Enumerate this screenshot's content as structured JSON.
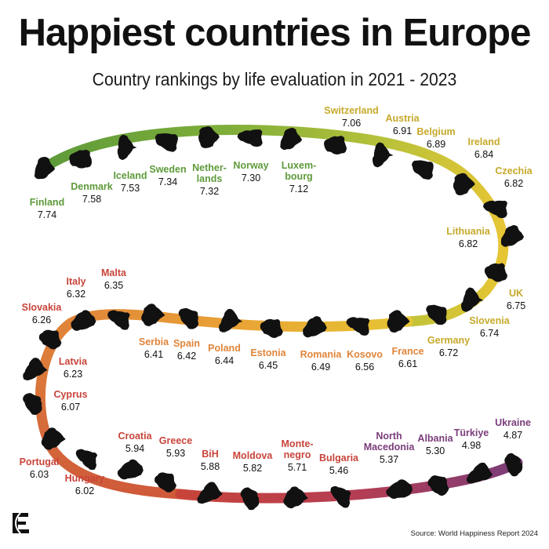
{
  "header": {
    "title": "Happiest countries in Europe",
    "subtitle": "Country rankings by life evaluation in 2021 - 2023"
  },
  "footer": {
    "source": "Source: World Happiness Report 2024",
    "logo_letter": "E"
  },
  "colors": {
    "green": "#5e9a3a",
    "yellow": "#e6c534",
    "orange": "#e0853a",
    "red": "#c8443a",
    "purple": "#7a3d7a",
    "silhouette": "#111111"
  },
  "chart_data": {
    "type": "table",
    "title": "Happiest countries in Europe",
    "subtitle": "Country rankings by life evaluation in 2021 - 2023",
    "items": [
      {
        "rank": 1,
        "name": "Finland",
        "score": "7.74"
      },
      {
        "rank": 2,
        "name": "Denmark",
        "score": "7.58"
      },
      {
        "rank": 3,
        "name": "Iceland",
        "score": "7.53"
      },
      {
        "rank": 4,
        "name": "Sweden",
        "score": "7.34"
      },
      {
        "rank": 5,
        "name": "Nether-\nlands",
        "score": "7.32"
      },
      {
        "rank": 6,
        "name": "Norway",
        "score": "7.30"
      },
      {
        "rank": 7,
        "name": "Luxem-\nbourg",
        "score": "7.12"
      },
      {
        "rank": 8,
        "name": "Switzerland",
        "score": "7.06"
      },
      {
        "rank": 9,
        "name": "Austria",
        "score": "6.91"
      },
      {
        "rank": 10,
        "name": "Belgium",
        "score": "6.89"
      },
      {
        "rank": 11,
        "name": "Ireland",
        "score": "6.84"
      },
      {
        "rank": 12,
        "name": "Czechia",
        "score": "6.82"
      },
      {
        "rank": 13,
        "name": "Lithuania",
        "score": "6.82"
      },
      {
        "rank": 14,
        "name": "UK",
        "score": "6.75"
      },
      {
        "rank": 15,
        "name": "Slovenia",
        "score": "6.74"
      },
      {
        "rank": 16,
        "name": "Germany",
        "score": "6.72"
      },
      {
        "rank": 17,
        "name": "France",
        "score": "6.61"
      },
      {
        "rank": 18,
        "name": "Kosovo",
        "score": "6.56"
      },
      {
        "rank": 19,
        "name": "Romania",
        "score": "6.49"
      },
      {
        "rank": 20,
        "name": "Estonia",
        "score": "6.45"
      },
      {
        "rank": 21,
        "name": "Poland",
        "score": "6.44"
      },
      {
        "rank": 22,
        "name": "Spain",
        "score": "6.42"
      },
      {
        "rank": 23,
        "name": "Serbia",
        "score": "6.41"
      },
      {
        "rank": 24,
        "name": "Malta",
        "score": "6.35"
      },
      {
        "rank": 25,
        "name": "Italy",
        "score": "6.32"
      },
      {
        "rank": 26,
        "name": "Slovakia",
        "score": "6.26"
      },
      {
        "rank": 27,
        "name": "Latvia",
        "score": "6.23"
      },
      {
        "rank": 28,
        "name": "Cyprus",
        "score": "6.07"
      },
      {
        "rank": 29,
        "name": "Portugal",
        "score": "6.03"
      },
      {
        "rank": 30,
        "name": "Hungary",
        "score": "6.02"
      },
      {
        "rank": 31,
        "name": "Croatia",
        "score": "5.94"
      },
      {
        "rank": 32,
        "name": "Greece",
        "score": "5.93"
      },
      {
        "rank": 33,
        "name": "BiH",
        "score": "5.88"
      },
      {
        "rank": 34,
        "name": "Moldova",
        "score": "5.82"
      },
      {
        "rank": 35,
        "name": "Monte-\nnegro",
        "score": "5.71"
      },
      {
        "rank": 36,
        "name": "Bulgaria",
        "score": "5.46"
      },
      {
        "rank": 37,
        "name": "North\nMacedonia",
        "score": "5.37"
      },
      {
        "rank": 38,
        "name": "Albania",
        "score": "5.30"
      },
      {
        "rank": 39,
        "name": "Türkiye",
        "score": "4.98"
      },
      {
        "rank": 40,
        "name": "Ukraine",
        "score": "4.87"
      }
    ]
  }
}
